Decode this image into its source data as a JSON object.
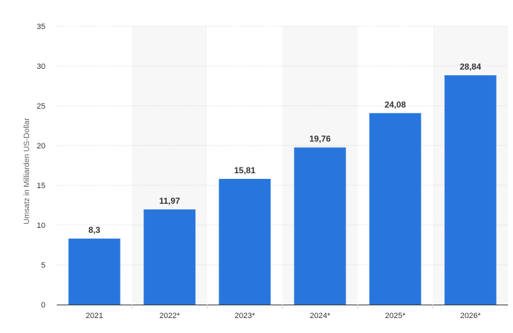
{
  "chart_data": {
    "type": "bar",
    "categories": [
      "2021",
      "2022*",
      "2023*",
      "2024*",
      "2025*",
      "2026*"
    ],
    "series": [
      {
        "values": [
          8.3,
          11.97,
          15.81,
          19.76,
          24.08,
          28.84
        ],
        "labels": [
          "8,3",
          "11,97",
          "15,81",
          "19,76",
          "24,08",
          "28,84"
        ]
      }
    ],
    "ylabel": "Umsatz in Milliarden US-Dollar",
    "xlabel": "",
    "ylim": [
      0,
      35
    ],
    "yticks": [
      0,
      5,
      10,
      15,
      20,
      25,
      30,
      35
    ],
    "ytick_labels": [
      "0",
      "5",
      "10",
      "15",
      "20",
      "25",
      "30",
      "35"
    ],
    "grid": true,
    "colors": {
      "bar": "#2876dd",
      "grid": "#cfcfcf",
      "band": "#f7f7f7",
      "axis": "#333333"
    }
  }
}
